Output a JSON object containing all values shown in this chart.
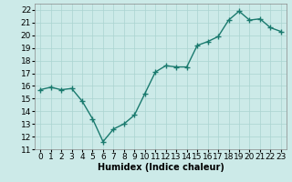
{
  "x": [
    0,
    1,
    2,
    3,
    4,
    5,
    6,
    7,
    8,
    9,
    10,
    11,
    12,
    13,
    14,
    15,
    16,
    17,
    18,
    19,
    20,
    21,
    22,
    23
  ],
  "y": [
    15.7,
    15.9,
    15.7,
    15.8,
    14.8,
    13.4,
    11.6,
    12.6,
    13.0,
    13.7,
    15.4,
    17.1,
    17.6,
    17.5,
    17.5,
    19.2,
    19.5,
    19.9,
    21.2,
    21.9,
    21.2,
    21.3,
    20.6,
    20.3
  ],
  "xlabel": "Humidex (Indice chaleur)",
  "ylim": [
    11,
    22.5
  ],
  "xlim": [
    -0.5,
    23.5
  ],
  "yticks": [
    11,
    12,
    13,
    14,
    15,
    16,
    17,
    18,
    19,
    20,
    21,
    22
  ],
  "xticks": [
    0,
    1,
    2,
    3,
    4,
    5,
    6,
    7,
    8,
    9,
    10,
    11,
    12,
    13,
    14,
    15,
    16,
    17,
    18,
    19,
    20,
    21,
    22,
    23
  ],
  "line_color": "#1a7a6e",
  "bg_color": "#cceae8",
  "grid_color": "#aad4d1",
  "axis_fontsize": 7,
  "tick_fontsize": 6.5,
  "xlabel_fontweight": "bold"
}
